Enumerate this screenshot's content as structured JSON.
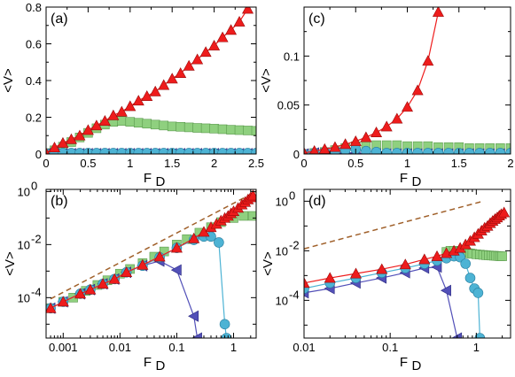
{
  "colors": {
    "red": "#ee1c1c",
    "green": "#8fd07f",
    "cyan": "#4db3d4",
    "blue": "#5250b8",
    "dash": "#a0602a"
  },
  "chart_data": [
    {
      "panel": "(a)",
      "type": "scatter",
      "xscale": "linear",
      "yscale": "linear",
      "xlim": [
        0,
        2.5
      ],
      "ylim": [
        0,
        0.8
      ],
      "xticks": [
        0,
        0.5,
        1,
        1.5,
        2,
        2.5
      ],
      "xtick_labels": [
        "0",
        "0.5",
        "1",
        "1.5",
        "2",
        "2.5"
      ],
      "yticks": [
        0,
        0.2,
        0.4,
        0.6,
        0.8
      ],
      "ytick_labels": [
        "0",
        "0.2",
        "0.4",
        "0.6",
        "0.8"
      ],
      "xlabel": "F",
      "xlabel_sub": "D",
      "ylabel": "<V>",
      "series": [
        {
          "color": "green",
          "marker": "square",
          "line": false,
          "x": [
            0.0,
            0.1,
            0.2,
            0.3,
            0.4,
            0.5,
            0.6,
            0.7,
            0.8,
            0.9,
            1.0,
            1.1,
            1.2,
            1.3,
            1.4,
            1.5,
            1.6,
            1.7,
            1.8,
            1.9,
            2.0,
            2.1,
            2.2,
            2.3,
            2.4,
            2.5
          ],
          "y": [
            0.005,
            0.02,
            0.04,
            0.065,
            0.09,
            0.115,
            0.14,
            0.16,
            0.175,
            0.18,
            0.175,
            0.17,
            0.165,
            0.16,
            0.155,
            0.15,
            0.148,
            0.145,
            0.142,
            0.14,
            0.138,
            0.135,
            0.132,
            0.13,
            0.128,
            0.126
          ]
        },
        {
          "color": "blue",
          "marker": "tri-left",
          "line": true,
          "x": [
            0.0,
            0.1,
            0.2,
            0.3,
            0.4,
            0.5,
            0.6,
            0.7,
            0.8,
            0.9,
            1.0,
            1.1,
            1.2,
            1.3,
            1.4,
            1.5,
            1.6,
            1.7,
            1.8,
            1.9,
            2.0,
            2.1,
            2.2,
            2.3,
            2.4,
            2.5
          ],
          "y": [
            0.001,
            0.002,
            0.002,
            0.002,
            0.002,
            0.002,
            0.002,
            0.002,
            0.002,
            0.002,
            0.002,
            0.002,
            0.002,
            0.002,
            0.002,
            0.002,
            0.002,
            0.002,
            0.002,
            0.002,
            0.002,
            0.002,
            0.002,
            0.002,
            0.002,
            0.002
          ]
        },
        {
          "color": "cyan",
          "marker": "circle",
          "line": true,
          "x": [
            0.0,
            0.1,
            0.2,
            0.3,
            0.4,
            0.5,
            0.6,
            0.7,
            0.8,
            0.9,
            1.0,
            1.1,
            1.2,
            1.3,
            1.4,
            1.5,
            1.6,
            1.7,
            1.8,
            1.9,
            2.0,
            2.1,
            2.2,
            2.3,
            2.4,
            2.5
          ],
          "y": [
            0.002,
            0.004,
            0.005,
            0.005,
            0.005,
            0.005,
            0.005,
            0.005,
            0.005,
            0.005,
            0.005,
            0.005,
            0.005,
            0.005,
            0.005,
            0.005,
            0.005,
            0.005,
            0.005,
            0.005,
            0.005,
            0.005,
            0.005,
            0.005,
            0.005,
            0.005
          ]
        },
        {
          "color": "red",
          "marker": "triangle",
          "line": true,
          "x": [
            0.0,
            0.1,
            0.2,
            0.3,
            0.4,
            0.5,
            0.6,
            0.7,
            0.8,
            0.9,
            1.0,
            1.1,
            1.2,
            1.3,
            1.4,
            1.5,
            1.6,
            1.7,
            1.8,
            1.9,
            2.0,
            2.1,
            2.2,
            2.3,
            2.4
          ],
          "y": [
            0.005,
            0.035,
            0.06,
            0.08,
            0.1,
            0.13,
            0.155,
            0.18,
            0.21,
            0.23,
            0.26,
            0.29,
            0.315,
            0.34,
            0.375,
            0.41,
            0.44,
            0.48,
            0.515,
            0.555,
            0.59,
            0.635,
            0.675,
            0.72,
            0.79
          ]
        }
      ]
    },
    {
      "panel": "(c)",
      "type": "scatter",
      "xscale": "linear",
      "yscale": "linear",
      "xlim": [
        0,
        2
      ],
      "ylim": [
        0,
        0.15
      ],
      "xticks": [
        0,
        0.5,
        1,
        1.5,
        2
      ],
      "xtick_labels": [
        "0",
        "0.5",
        "1",
        "1.5",
        "2"
      ],
      "yticks": [
        0,
        0.05,
        0.1
      ],
      "ytick_labels": [
        "0",
        "0.05",
        "0.1"
      ],
      "xlabel": "F",
      "xlabel_sub": "D",
      "ylabel": "<V>",
      "series": [
        {
          "color": "green",
          "marker": "square",
          "line": false,
          "x": [
            0.0,
            0.1,
            0.2,
            0.3,
            0.4,
            0.5,
            0.6,
            0.7,
            0.8,
            0.9,
            1.0,
            1.1,
            1.2,
            1.3,
            1.4,
            1.5,
            1.6,
            1.7,
            1.8,
            1.9,
            2.0
          ],
          "y": [
            0.0,
            0.001,
            0.002,
            0.004,
            0.006,
            0.008,
            0.009,
            0.009,
            0.009,
            0.009,
            0.008,
            0.008,
            0.008,
            0.007,
            0.007,
            0.007,
            0.006,
            0.006,
            0.006,
            0.006,
            0.006
          ]
        },
        {
          "color": "blue",
          "marker": "tri-left",
          "line": true,
          "x": [
            0.0,
            0.1,
            0.2,
            0.3,
            0.4,
            0.5,
            0.6,
            0.7,
            0.8,
            0.9,
            1.0,
            1.1,
            1.2,
            1.3,
            1.4,
            1.5,
            1.6,
            1.7,
            1.8,
            1.9,
            2.0
          ],
          "y": [
            0.0,
            0.001,
            0.001,
            0.001,
            0.001,
            0.001,
            0.0,
            0.0,
            0.0,
            0.0,
            0.0,
            0.0,
            0.0,
            0.0,
            0.0,
            0.0,
            0.0,
            0.0,
            0.0,
            0.0,
            0.0
          ]
        },
        {
          "color": "cyan",
          "marker": "circle",
          "line": true,
          "x": [
            0.0,
            0.1,
            0.2,
            0.3,
            0.4,
            0.5,
            0.6,
            0.7,
            0.8,
            0.9,
            1.0,
            1.1,
            1.2,
            1.3,
            1.4,
            1.5,
            1.6,
            1.7,
            1.8,
            1.9,
            2.0
          ],
          "y": [
            0.0,
            0.001,
            0.002,
            0.003,
            0.004,
            0.005,
            0.003,
            0.002,
            0.001,
            0.001,
            0.001,
            0.001,
            0.001,
            0.001,
            0.001,
            0.001,
            0.001,
            0.001,
            0.001,
            0.001,
            0.001
          ]
        },
        {
          "color": "red",
          "marker": "triangle",
          "line": true,
          "x": [
            0.0,
            0.1,
            0.2,
            0.3,
            0.4,
            0.5,
            0.6,
            0.7,
            0.8,
            0.9,
            1.0,
            1.1,
            1.2,
            1.3
          ],
          "y": [
            0.001,
            0.003,
            0.005,
            0.007,
            0.01,
            0.013,
            0.017,
            0.022,
            0.028,
            0.036,
            0.048,
            0.065,
            0.095,
            0.145
          ]
        }
      ]
    },
    {
      "panel": "(b)",
      "type": "scatter",
      "xscale": "log",
      "yscale": "log",
      "xlim": [
        0.0005,
        2.5
      ],
      "ylim": [
        3e-06,
        1.2
      ],
      "xticks": [
        0.001,
        0.01,
        0.1,
        1
      ],
      "xtick_labels": [
        "0.001",
        "0.01",
        "0.1",
        "1"
      ],
      "yticks": [
        0.0001,
        0.01,
        1
      ],
      "ytick_labels": [
        {
          "b": "10",
          "e": "-4"
        },
        {
          "b": "10",
          "e": "-2"
        },
        {
          "b": "10",
          "e": "0"
        }
      ],
      "xlabel": "F",
      "xlabel_sub": "D",
      "ylabel": "<V>",
      "dashed": {
        "x": [
          0.0006,
          2.5
        ],
        "y": [
          9e-05,
          1.0
        ]
      },
      "series": [
        {
          "color": "green",
          "marker": "square",
          "line": false,
          "x": [
            0.0006,
            0.001,
            0.0015,
            0.0025,
            0.004,
            0.006,
            0.01,
            0.015,
            0.025,
            0.04,
            0.06,
            0.1,
            0.15,
            0.25,
            0.4,
            0.6,
            1.0,
            1.5,
            2.2
          ],
          "y": [
            4e-05,
            7e-05,
            0.0001,
            0.00018,
            0.0003,
            0.00045,
            0.0008,
            0.0012,
            0.002,
            0.0035,
            0.0055,
            0.01,
            0.016,
            0.028,
            0.045,
            0.07,
            0.1,
            0.12,
            0.12
          ]
        },
        {
          "color": "blue",
          "marker": "tri-left",
          "line": true,
          "x": [
            0.0006,
            0.001,
            0.002,
            0.003,
            0.005,
            0.008,
            0.013,
            0.025,
            0.05,
            0.1,
            0.2,
            0.23
          ],
          "y": [
            4e-05,
            7e-05,
            0.00014,
            0.0002,
            0.00033,
            0.0005,
            0.0009,
            0.0016,
            0.0024,
            0.0011,
            2e-05,
            3e-06
          ]
        },
        {
          "color": "cyan",
          "marker": "circle",
          "line": true,
          "x": [
            0.0006,
            0.001,
            0.002,
            0.003,
            0.005,
            0.008,
            0.013,
            0.025,
            0.05,
            0.1,
            0.2,
            0.3,
            0.4,
            0.55,
            0.7,
            0.75
          ],
          "y": [
            4e-05,
            7e-05,
            0.00014,
            0.0002,
            0.00033,
            0.0005,
            0.0009,
            0.0016,
            0.0033,
            0.0075,
            0.015,
            0.02,
            0.02,
            0.012,
            1e-05,
            3e-06
          ]
        },
        {
          "color": "red",
          "marker": "triangle",
          "line": true,
          "x": [
            0.0006,
            0.001,
            0.002,
            0.003,
            0.005,
            0.008,
            0.013,
            0.025,
            0.05,
            0.1,
            0.2,
            0.3,
            0.4,
            0.5,
            0.6,
            0.7,
            0.8,
            0.9,
            1.0,
            1.2,
            1.4,
            1.6,
            1.8,
            2.0,
            2.2
          ],
          "y": [
            4e-05,
            7e-05,
            0.00014,
            0.0002,
            0.00033,
            0.0005,
            0.0009,
            0.0017,
            0.0035,
            0.0075,
            0.017,
            0.03,
            0.045,
            0.06,
            0.08,
            0.1,
            0.12,
            0.15,
            0.18,
            0.24,
            0.32,
            0.4,
            0.5,
            0.6,
            0.7
          ]
        }
      ]
    },
    {
      "panel": "(d)",
      "type": "scatter",
      "xscale": "log",
      "yscale": "log",
      "xlim": [
        0.01,
        2.5
      ],
      "ylim": [
        3e-06,
        3
      ],
      "xticks": [
        0.01,
        0.1,
        1
      ],
      "xtick_labels": [
        "0.01",
        "0.1",
        "1"
      ],
      "yticks": [
        0.0001,
        0.01,
        1
      ],
      "ytick_labels": [
        {
          "b": "10",
          "e": "-4"
        },
        {
          "b": "10",
          "e": "-2"
        },
        {
          "b": "10",
          "e": "0"
        }
      ],
      "xlabel": "F",
      "xlabel_sub": "D",
      "ylabel": "<V>",
      "dashed": {
        "x": [
          0.01,
          1.2
        ],
        "y": [
          0.012,
          1.0
        ]
      },
      "series": [
        {
          "color": "green",
          "marker": "square",
          "line": false,
          "x": [
            0.45,
            0.5,
            0.55,
            0.6,
            0.65,
            0.7,
            0.75,
            0.8,
            0.85,
            0.9,
            1.0,
            1.1,
            1.2,
            1.3,
            1.4,
            1.5,
            1.6,
            1.7,
            1.8,
            1.9,
            2.0
          ],
          "y": [
            0.009,
            0.01,
            0.01,
            0.0095,
            0.009,
            0.0088,
            0.0085,
            0.008,
            0.0078,
            0.0075,
            0.0072,
            0.007,
            0.0068,
            0.0066,
            0.0065,
            0.0064,
            0.0063,
            0.0062,
            0.0061,
            0.006,
            0.006
          ]
        },
        {
          "color": "blue",
          "marker": "tri-left",
          "line": true,
          "x": [
            0.01,
            0.02,
            0.04,
            0.08,
            0.15,
            0.25,
            0.35,
            0.45,
            0.6
          ],
          "y": [
            0.0002,
            0.0003,
            0.0005,
            0.0008,
            0.0013,
            0.002,
            0.0022,
            0.00025,
            3e-06
          ]
        },
        {
          "color": "cyan",
          "marker": "circle",
          "line": true,
          "x": [
            0.01,
            0.02,
            0.04,
            0.08,
            0.15,
            0.25,
            0.35,
            0.45,
            0.55,
            0.65,
            0.75,
            0.85,
            0.95,
            1.05,
            1.1
          ],
          "y": [
            0.0003,
            0.0005,
            0.0008,
            0.0013,
            0.002,
            0.003,
            0.004,
            0.005,
            0.006,
            0.0055,
            0.003,
            0.0008,
            0.0003,
            0.0002,
            3e-06
          ]
        },
        {
          "color": "red",
          "marker": "triangle",
          "line": true,
          "x": [
            0.01,
            0.02,
            0.04,
            0.08,
            0.15,
            0.25,
            0.35,
            0.45,
            0.55,
            0.65,
            0.75,
            0.85,
            0.95,
            1.05,
            1.15,
            1.25,
            1.35,
            1.45,
            1.55,
            1.65,
            1.75,
            1.85,
            1.95,
            2.1
          ],
          "y": [
            0.0005,
            0.0008,
            0.0012,
            0.0018,
            0.0028,
            0.0045,
            0.006,
            0.008,
            0.01,
            0.013,
            0.018,
            0.025,
            0.035,
            0.048,
            0.065,
            0.085,
            0.1,
            0.13,
            0.16,
            0.19,
            0.22,
            0.26,
            0.3,
            0.35
          ]
        }
      ]
    }
  ]
}
